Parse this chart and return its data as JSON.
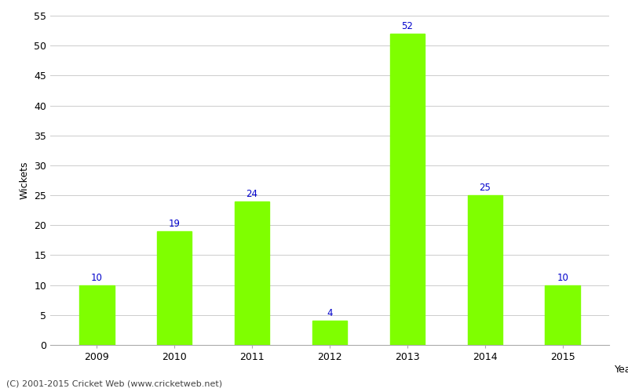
{
  "years": [
    "2009",
    "2010",
    "2011",
    "2012",
    "2013",
    "2014",
    "2015"
  ],
  "values": [
    10,
    19,
    24,
    4,
    52,
    25,
    10
  ],
  "bar_color": "#7fff00",
  "bar_edgecolor": "#7fff00",
  "label_color": "#0000cc",
  "label_fontsize": 8.5,
  "ylabel": "Wickets",
  "xlabel_right": "Year",
  "ylim": [
    0,
    55
  ],
  "yticks": [
    0,
    5,
    10,
    15,
    20,
    25,
    30,
    35,
    40,
    45,
    50,
    55
  ],
  "grid_color": "#cccccc",
  "background_color": "#ffffff",
  "footer": "(C) 2001-2015 Cricket Web (www.cricketweb.net)",
  "footer_fontsize": 8,
  "footer_color": "#444444",
  "axis_fontsize": 9,
  "tick_fontsize": 9,
  "bar_width": 0.45
}
